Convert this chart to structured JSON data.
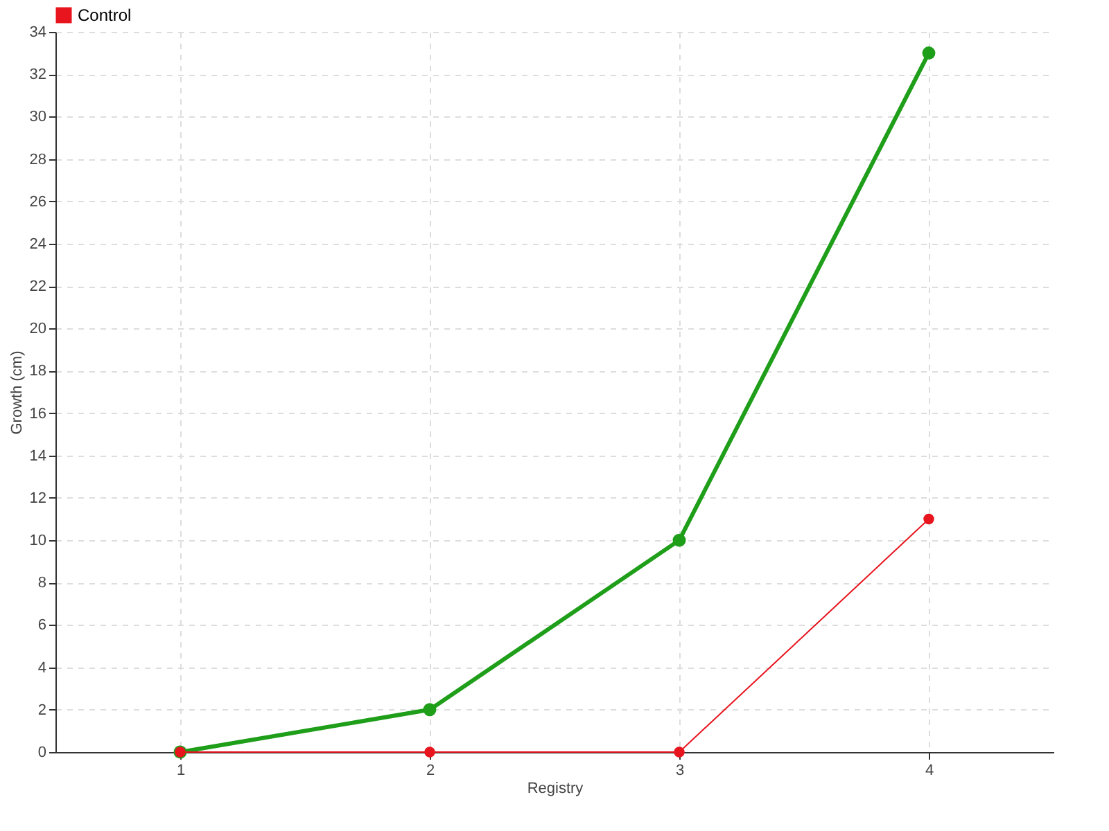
{
  "chart_data": {
    "type": "line",
    "xlabel": "Registry",
    "ylabel": "Growth (cm)",
    "x": [
      1,
      2,
      3,
      4
    ],
    "xlim": [
      0.5,
      4.5
    ],
    "xticks": [
      1,
      2,
      3,
      4
    ],
    "ylim": [
      0,
      34
    ],
    "yticks": [
      0,
      2,
      4,
      6,
      8,
      10,
      12,
      14,
      16,
      18,
      20,
      22,
      24,
      26,
      28,
      30,
      32,
      34
    ],
    "series": [
      {
        "color": "#1f9e1a",
        "values": [
          0,
          2,
          10,
          33
        ]
      },
      {
        "name": "Control",
        "color": "#e8141e",
        "values": [
          0,
          0,
          0,
          11
        ]
      }
    ],
    "grid": true,
    "legend": "top left",
    "marker": "circle",
    "line_style": "solid"
  }
}
